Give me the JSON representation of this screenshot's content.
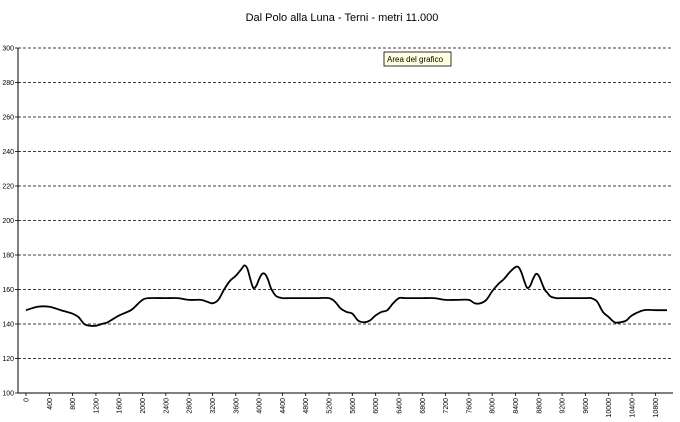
{
  "chart_data": {
    "type": "line",
    "title": "Dal Polo alla Luna - Terni - metri 11.000",
    "xlabel": "",
    "ylabel": "",
    "ylim": [
      100,
      300
    ],
    "xlim": [
      0,
      11000
    ],
    "grid": true,
    "legend": "none",
    "y_ticks": [
      "100",
      "120",
      "140",
      "160",
      "180",
      "200",
      "220",
      "240",
      "260",
      "280",
      "300"
    ],
    "x_ticks": [
      "0",
      "400",
      "800",
      "1200",
      "1600",
      "2000",
      "2400",
      "2800",
      "3200",
      "3600",
      "4000",
      "4400",
      "4800",
      "5200",
      "5600",
      "6000",
      "6400",
      "6800",
      "7200",
      "7600",
      "8000",
      "8400",
      "8800",
      "9200",
      "9600",
      "10000",
      "10400",
      "10800"
    ],
    "tooltip": "Area del grafico",
    "series": [
      {
        "color": "#000000",
        "x": [
          0,
          200,
          400,
          600,
          800,
          900,
          1000,
          1100,
          1200,
          1300,
          1400,
          1500,
          1600,
          1800,
          1900,
          2000,
          2100,
          2400,
          2600,
          2800,
          3000,
          3100,
          3200,
          3300,
          3400,
          3500,
          3600,
          3700,
          3750,
          3800,
          3850,
          3900,
          3950,
          4000,
          4050,
          4100,
          4150,
          4200,
          4250,
          4300,
          4400,
          4500,
          4600,
          4800,
          5000,
          5200,
          5300,
          5400,
          5500,
          5600,
          5700,
          5800,
          5900,
          6000,
          6100,
          6200,
          6300,
          6400,
          6500,
          6600,
          6800,
          7000,
          7200,
          7400,
          7600,
          7700,
          7800,
          7900,
          8000,
          8100,
          8200,
          8300,
          8400,
          8450,
          8500,
          8550,
          8600,
          8650,
          8700,
          8750,
          8800,
          8850,
          8900,
          8950,
          9000,
          9100,
          9200,
          9400,
          9600,
          9700,
          9800,
          9900,
          10000,
          10100,
          10200,
          10300,
          10400,
          10600,
          10800,
          11000
        ],
        "y": [
          148,
          150,
          150,
          148,
          146,
          144,
          140,
          139,
          139,
          140,
          141,
          143,
          145,
          148,
          151,
          154,
          155,
          155,
          155,
          154,
          154,
          153,
          152,
          154,
          160,
          165,
          168,
          172,
          174,
          172,
          166,
          161,
          162,
          166,
          169,
          169,
          166,
          161,
          158,
          156,
          155,
          155,
          155,
          155,
          155,
          155,
          153,
          149,
          147,
          146,
          142,
          141,
          142,
          145,
          147,
          148,
          152,
          155,
          155,
          155,
          155,
          155,
          154,
          154,
          154,
          152,
          152,
          154,
          159,
          163,
          166,
          170,
          173,
          173,
          170,
          165,
          161,
          162,
          166,
          169,
          168,
          164,
          160,
          158,
          156,
          155,
          155,
          155,
          155,
          155,
          153,
          147,
          144,
          141,
          141,
          142,
          145,
          148,
          148,
          148
        ]
      }
    ]
  }
}
